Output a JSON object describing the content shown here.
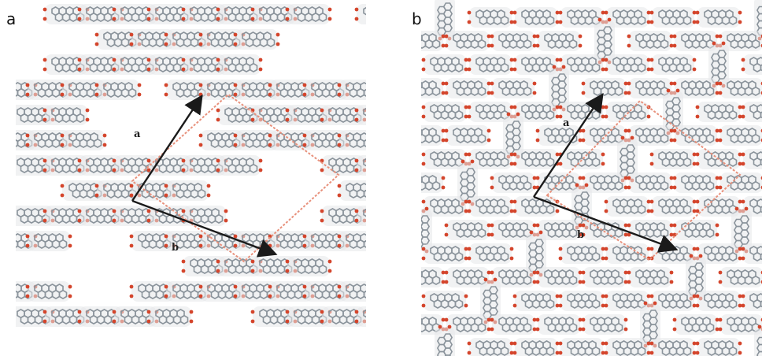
{
  "panels": [
    {
      "letter": "a",
      "vector_a_label": "a",
      "vector_b_label": "b",
      "arrangement": "sparse-porous-network",
      "colors": {
        "carbon": "#8a939b",
        "oxygen": "#d4452c",
        "hydrogen": "#e6e8ea",
        "arrow": "#1a1a1a",
        "cell_outline": "#e8917c"
      }
    },
    {
      "letter": "b",
      "vector_a_label": "a",
      "vector_b_label": "b",
      "arrangement": "dense-filled-network",
      "colors": {
        "carbon": "#8a939b",
        "oxygen": "#d4452c",
        "hydrogen": "#e6e8ea",
        "arrow": "#1a1a1a",
        "cell_outline": "#e8917c"
      }
    }
  ]
}
